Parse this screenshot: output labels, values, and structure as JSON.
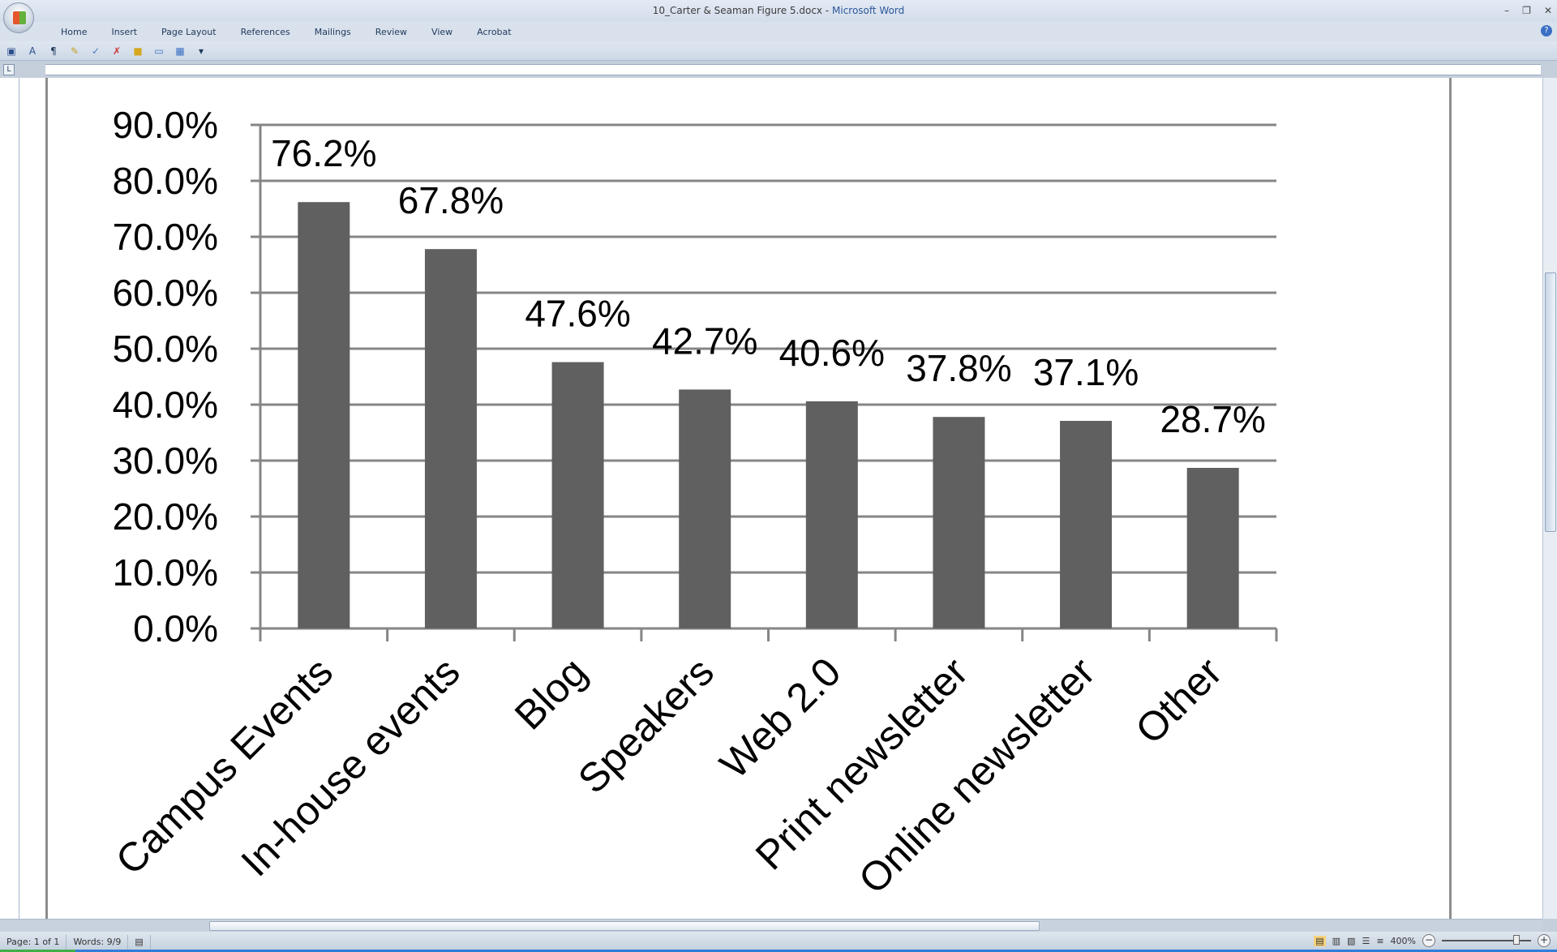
{
  "window": {
    "title_doc": "10_Carter & Seaman Figure 5.docx",
    "title_sep": " - ",
    "title_app": "Microsoft Word"
  },
  "ribbon_tabs": [
    "Home",
    "Insert",
    "Page Layout",
    "References",
    "Mailings",
    "Review",
    "View",
    "Acrobat"
  ],
  "status": {
    "page": "Page: 1 of 1",
    "words": "Words: 9/9",
    "zoom": "400%"
  },
  "chart_data": {
    "type": "bar",
    "categories": [
      "Campus Events",
      "In-house events",
      "Blog",
      "Speakers",
      "Web 2.0",
      "Print newsletter",
      "Online newsletter",
      "Other"
    ],
    "values": [
      76.2,
      67.8,
      47.6,
      42.7,
      40.6,
      37.8,
      37.1,
      28.7
    ],
    "data_labels": [
      "76.2%",
      "67.8%",
      "47.6%",
      "42.7%",
      "40.6%",
      "37.8%",
      "37.1%",
      "28.7%"
    ],
    "ylim": [
      0,
      90
    ],
    "yticks": [
      "0.0%",
      "10.0%",
      "20.0%",
      "30.0%",
      "40.0%",
      "50.0%",
      "60.0%",
      "70.0%",
      "80.0%",
      "90.0%"
    ],
    "grid": true,
    "bar_color": "#606060",
    "grid_color": "#868686"
  }
}
